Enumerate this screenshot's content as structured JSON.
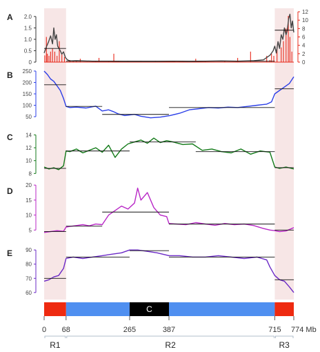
{
  "figure": {
    "x_unit": "Mb",
    "x_range": [
      0,
      774
    ],
    "regions": [
      {
        "name": "R1",
        "start": 0,
        "end": 68,
        "shaded": true
      },
      {
        "name": "R2",
        "start": 68,
        "end": 715,
        "shaded": false
      },
      {
        "name": "R3",
        "start": 715,
        "end": 774,
        "shaded": true
      }
    ],
    "shade_color": "#f7e6e6",
    "chromosome_bar": {
      "segments": [
        {
          "start": 0,
          "end": 68,
          "color": "#ee2a10",
          "label": ""
        },
        {
          "start": 68,
          "end": 265,
          "color": "#4f8ff0",
          "label": ""
        },
        {
          "start": 265,
          "end": 387,
          "color": "#000000",
          "label": "C"
        },
        {
          "start": 387,
          "end": 715,
          "color": "#4f8ff0",
          "label": ""
        },
        {
          "start": 715,
          "end": 774,
          "color": "#ee2a10",
          "label": ""
        }
      ]
    },
    "x_ticks": [
      {
        "value": 0,
        "label": "0"
      },
      {
        "value": 68,
        "label": "68"
      },
      {
        "value": 265,
        "label": "265"
      },
      {
        "value": 387,
        "label": "387"
      },
      {
        "value": 715,
        "label": "715"
      },
      {
        "value": 774,
        "label": "774 Mb"
      }
    ]
  },
  "chart_data": [
    {
      "type": "line",
      "panel": "A",
      "y_left": {
        "ticks": [
          0,
          0.5,
          1.0,
          1.5,
          2.0
        ],
        "tick_labels": [
          "0",
          "0.5",
          "1.0",
          "1.5",
          "2.0"
        ],
        "range": [
          0,
          2.3
        ],
        "color": "#333333"
      },
      "y_right": {
        "ticks": [
          0,
          2,
          4,
          6,
          8,
          10,
          12
        ],
        "range": [
          0,
          12.5
        ],
        "color": "#e8281a"
      },
      "series": [
        {
          "axis": "right",
          "color": "#e8281a",
          "style": "spikes",
          "x": [
            2,
            7,
            10,
            15,
            20,
            26,
            33,
            40,
            47,
            55,
            63,
            80,
            90,
            100,
            112,
            160,
            170,
            200,
            216,
            230,
            260,
            300,
            345,
            430,
            470,
            500,
            560,
            600,
            640,
            690,
            700,
            705,
            712,
            722,
            735,
            742,
            750,
            757,
            762,
            768
          ],
          "y": [
            1.6,
            6.0,
            2.0,
            1.5,
            2.5,
            3.3,
            2.5,
            1.5,
            5.0,
            1.8,
            1.2,
            0.5,
            0.4,
            0.3,
            0.8,
            0.3,
            1.0,
            0.3,
            2.0,
            0.3,
            0.3,
            0.3,
            0.3,
            0.3,
            0.8,
            0.3,
            0.3,
            1.0,
            2.5,
            1.5,
            0.5,
            2.0,
            1.5,
            3.0,
            3.5,
            5.0,
            8.0,
            11.0,
            6.0,
            2.5
          ]
        },
        {
          "axis": "left",
          "color": "#444444",
          "style": "line",
          "x": [
            0,
            8,
            14,
            20,
            26,
            30,
            34,
            38,
            42,
            46,
            50,
            55,
            60,
            66,
            72,
            80,
            100,
            150,
            200,
            250,
            300,
            350,
            400,
            450,
            500,
            550,
            600,
            650,
            680,
            700,
            710,
            715,
            720,
            725,
            730,
            735,
            740,
            745,
            750,
            754,
            758,
            762,
            766,
            770,
            774
          ],
          "y": [
            0.4,
            0.7,
            0.9,
            1.15,
            0.8,
            1.5,
            1.0,
            1.2,
            0.7,
            0.6,
            0.5,
            0.35,
            0.45,
            0.2,
            0.1,
            0.05,
            0.06,
            0.04,
            0.04,
            0.03,
            0.03,
            0.03,
            0.04,
            0.03,
            0.04,
            0.05,
            0.04,
            0.06,
            0.1,
            0.3,
            0.5,
            0.7,
            0.4,
            0.9,
            0.6,
            1.2,
            1.0,
            1.5,
            1.2,
            1.4,
            1.9,
            2.1,
            1.5,
            1.8,
            1.3
          ]
        }
      ],
      "mean_lines": [
        {
          "start": 0,
          "end": 68,
          "value": 0.6
        },
        {
          "start": 68,
          "end": 715,
          "value": 0.04
        },
        {
          "start": 715,
          "end": 774,
          "value": 1.4
        }
      ]
    },
    {
      "type": "line",
      "panel": "B",
      "color": "#2a3ee8",
      "y_left": {
        "ticks": [
          50,
          100,
          150,
          200,
          250
        ],
        "tick_labels": [
          "50",
          "100",
          "150",
          "200",
          "250"
        ],
        "range": [
          35,
          265
        ]
      },
      "x": [
        0,
        10,
        20,
        30,
        40,
        50,
        60,
        68,
        80,
        100,
        130,
        160,
        180,
        200,
        215,
        230,
        250,
        280,
        300,
        330,
        360,
        390,
        420,
        450,
        480,
        510,
        540,
        570,
        600,
        630,
        660,
        690,
        705,
        715,
        730,
        745,
        760,
        774
      ],
      "y": [
        250,
        235,
        215,
        205,
        185,
        165,
        130,
        95,
        90,
        92,
        88,
        96,
        75,
        80,
        72,
        62,
        55,
        60,
        52,
        45,
        48,
        55,
        65,
        80,
        85,
        90,
        88,
        92,
        90,
        95,
        100,
        105,
        115,
        150,
        165,
        180,
        195,
        225
      ],
      "mean_lines": [
        {
          "start": 0,
          "end": 68,
          "value": 190
        },
        {
          "start": 68,
          "end": 180,
          "value": 95
        },
        {
          "start": 180,
          "end": 387,
          "value": 60
        },
        {
          "start": 387,
          "end": 715,
          "value": 90
        },
        {
          "start": 715,
          "end": 774,
          "value": 172
        }
      ]
    },
    {
      "type": "line",
      "panel": "C",
      "color": "#127a18",
      "y_left": {
        "ticks": [
          8,
          10,
          12,
          14
        ],
        "tick_labels": [
          "8",
          "10",
          "12",
          "14"
        ],
        "range": [
          7.5,
          14.8
        ]
      },
      "x": [
        0,
        15,
        30,
        45,
        60,
        68,
        80,
        100,
        120,
        140,
        160,
        180,
        200,
        220,
        240,
        260,
        280,
        300,
        320,
        340,
        360,
        380,
        400,
        430,
        460,
        490,
        520,
        550,
        580,
        610,
        640,
        670,
        700,
        715,
        730,
        750,
        774
      ],
      "y": [
        9.0,
        8.7,
        8.9,
        8.6,
        9.2,
        11.5,
        11.4,
        11.8,
        11.2,
        11.6,
        12.0,
        11.3,
        12.4,
        10.5,
        11.8,
        12.6,
        12.9,
        13.2,
        12.7,
        13.5,
        12.8,
        13.1,
        12.9,
        12.5,
        12.6,
        11.6,
        11.8,
        11.4,
        11.2,
        11.8,
        11.0,
        11.5,
        11.3,
        9.0,
        8.8,
        9.0,
        8.7
      ],
      "mean_lines": [
        {
          "start": 0,
          "end": 68,
          "value": 8.8
        },
        {
          "start": 68,
          "end": 265,
          "value": 11.5
        },
        {
          "start": 265,
          "end": 470,
          "value": 12.9
        },
        {
          "start": 470,
          "end": 715,
          "value": 11.4
        },
        {
          "start": 715,
          "end": 774,
          "value": 8.9
        }
      ]
    },
    {
      "type": "line",
      "panel": "D",
      "color": "#b826c6",
      "y_left": {
        "ticks": [
          5,
          10,
          15,
          20
        ],
        "tick_labels": [
          "5",
          "10",
          "15",
          "20"
        ],
        "range": [
          3,
          20.5
        ]
      },
      "x": [
        0,
        20,
        40,
        60,
        68,
        80,
        100,
        120,
        140,
        160,
        180,
        200,
        220,
        240,
        260,
        280,
        290,
        300,
        320,
        340,
        360,
        380,
        387,
        410,
        440,
        470,
        500,
        530,
        560,
        590,
        620,
        650,
        680,
        700,
        715,
        730,
        750,
        774
      ],
      "y": [
        4.2,
        4.5,
        4.8,
        4.6,
        6.0,
        6.2,
        6.5,
        6.8,
        6.4,
        7.0,
        6.8,
        10.0,
        11.5,
        13.0,
        12.0,
        14.0,
        19.0,
        15.0,
        17.5,
        12.5,
        10.0,
        9.5,
        7.2,
        7.0,
        6.8,
        7.5,
        7.0,
        6.6,
        7.2,
        6.8,
        7.0,
        6.5,
        5.5,
        5.0,
        4.8,
        4.5,
        4.7,
        5.8
      ],
      "mean_lines": [
        {
          "start": 0,
          "end": 68,
          "value": 4.5
        },
        {
          "start": 68,
          "end": 180,
          "value": 6.3
        },
        {
          "start": 180,
          "end": 387,
          "value": 11.0
        },
        {
          "start": 387,
          "end": 715,
          "value": 7.0
        },
        {
          "start": 715,
          "end": 774,
          "value": 5.0
        }
      ]
    },
    {
      "type": "line",
      "panel": "E",
      "color": "#6a28c6",
      "y_left": {
        "ticks": [
          60,
          70,
          80,
          90
        ],
        "tick_labels": [
          "60",
          "70",
          "80",
          "90"
        ],
        "range": [
          57,
          93
        ]
      },
      "x": [
        0,
        15,
        30,
        45,
        60,
        68,
        90,
        120,
        150,
        180,
        210,
        240,
        265,
        290,
        320,
        350,
        387,
        420,
        460,
        500,
        540,
        580,
        620,
        660,
        690,
        700,
        715,
        730,
        745,
        760,
        774
      ],
      "y": [
        68,
        69,
        71,
        72,
        77,
        84,
        85,
        84,
        85,
        86,
        87,
        88,
        90,
        90,
        89,
        88,
        86,
        86,
        85,
        85,
        86,
        85,
        84,
        85,
        83,
        78,
        72,
        69,
        68,
        64,
        60
      ],
      "mean_lines": [
        {
          "start": 0,
          "end": 68,
          "value": 70
        },
        {
          "start": 68,
          "end": 265,
          "value": 85
        },
        {
          "start": 265,
          "end": 387,
          "value": 89.5
        },
        {
          "start": 387,
          "end": 715,
          "value": 85
        },
        {
          "start": 715,
          "end": 774,
          "value": 69
        }
      ]
    }
  ]
}
